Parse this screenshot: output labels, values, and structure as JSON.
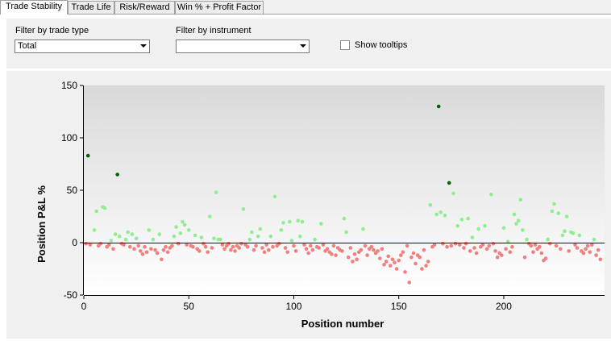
{
  "tabs": [
    {
      "label": "Trade Stability",
      "active": true
    },
    {
      "label": "Trade Life",
      "active": false
    },
    {
      "label": "Risk/Reward",
      "active": false
    },
    {
      "label": "Win % + Profit Factor",
      "active": false
    }
  ],
  "filters": {
    "trade_type_label": "Filter by trade type",
    "trade_type_value": "Total",
    "instrument_label": "Filter by instrument",
    "instrument_value": "",
    "tooltips_label": "Show tooltips",
    "tooltips_checked": false
  },
  "chart_data": {
    "type": "scatter",
    "xlabel": "Position number",
    "ylabel": "Position P&L %",
    "xlim": [
      0,
      248
    ],
    "ylim": [
      -50,
      150
    ],
    "xticks": [
      0,
      50,
      100,
      150,
      200
    ],
    "yticks": [
      -50,
      0,
      50,
      100,
      150
    ],
    "colors": {
      "win": "#90ee90",
      "loss": "#f08080",
      "big_win": "#006400",
      "zero_line": "#000080"
    },
    "points": [
      [
        1,
        -1
      ],
      [
        2,
        83
      ],
      [
        3,
        -2
      ],
      [
        5,
        12
      ],
      [
        6,
        30
      ],
      [
        7,
        -3
      ],
      [
        8,
        -1
      ],
      [
        9,
        34
      ],
      [
        10,
        33
      ],
      [
        11,
        -4
      ],
      [
        12,
        -2
      ],
      [
        13,
        2
      ],
      [
        14,
        -6
      ],
      [
        15,
        8
      ],
      [
        16,
        65
      ],
      [
        17,
        6
      ],
      [
        18,
        -1
      ],
      [
        19,
        -2
      ],
      [
        20,
        3
      ],
      [
        21,
        10
      ],
      [
        22,
        -4
      ],
      [
        23,
        8
      ],
      [
        24,
        -6
      ],
      [
        25,
        4
      ],
      [
        26,
        -3
      ],
      [
        27,
        -8
      ],
      [
        28,
        -11
      ],
      [
        29,
        -4
      ],
      [
        30,
        -9
      ],
      [
        31,
        12
      ],
      [
        32,
        -6
      ],
      [
        33,
        3
      ],
      [
        34,
        -7
      ],
      [
        35,
        -10
      ],
      [
        36,
        8
      ],
      [
        37,
        -16
      ],
      [
        38,
        -7
      ],
      [
        39,
        -4
      ],
      [
        40,
        -9
      ],
      [
        41,
        -5
      ],
      [
        42,
        -3
      ],
      [
        43,
        6
      ],
      [
        44,
        15
      ],
      [
        45,
        -1
      ],
      [
        46,
        9
      ],
      [
        47,
        20
      ],
      [
        48,
        17
      ],
      [
        49,
        -2
      ],
      [
        50,
        12
      ],
      [
        51,
        -3
      ],
      [
        52,
        -4
      ],
      [
        53,
        7
      ],
      [
        54,
        -6
      ],
      [
        55,
        -8
      ],
      [
        56,
        5
      ],
      [
        57,
        -1
      ],
      [
        58,
        -4
      ],
      [
        59,
        -9
      ],
      [
        60,
        25
      ],
      [
        61,
        -5
      ],
      [
        62,
        4
      ],
      [
        63,
        48
      ],
      [
        64,
        3
      ],
      [
        65,
        3
      ],
      [
        66,
        -2
      ],
      [
        67,
        -6
      ],
      [
        68,
        -3
      ],
      [
        69,
        -1
      ],
      [
        70,
        -7
      ],
      [
        71,
        -4
      ],
      [
        72,
        -8
      ],
      [
        73,
        -3
      ],
      [
        74,
        -5
      ],
      [
        75,
        -1
      ],
      [
        76,
        32
      ],
      [
        77,
        -2
      ],
      [
        78,
        -4
      ],
      [
        79,
        3
      ],
      [
        80,
        10
      ],
      [
        81,
        -7
      ],
      [
        82,
        -3
      ],
      [
        83,
        6
      ],
      [
        84,
        13
      ],
      [
        85,
        -5
      ],
      [
        86,
        -9
      ],
      [
        87,
        -2
      ],
      [
        88,
        -7
      ],
      [
        89,
        6
      ],
      [
        90,
        -4
      ],
      [
        91,
        44
      ],
      [
        92,
        -3
      ],
      [
        93,
        -1
      ],
      [
        94,
        12
      ],
      [
        95,
        19
      ],
      [
        96,
        -5
      ],
      [
        97,
        -9
      ],
      [
        98,
        20
      ],
      [
        99,
        2
      ],
      [
        100,
        -3
      ],
      [
        101,
        -8
      ],
      [
        102,
        21
      ],
      [
        103,
        6
      ],
      [
        104,
        20
      ],
      [
        105,
        -2
      ],
      [
        106,
        -6
      ],
      [
        107,
        -10
      ],
      [
        108,
        -3
      ],
      [
        109,
        -7
      ],
      [
        110,
        3
      ],
      [
        111,
        -4
      ],
      [
        112,
        -5
      ],
      [
        113,
        18
      ],
      [
        114,
        -2
      ],
      [
        115,
        -8
      ],
      [
        116,
        -6
      ],
      [
        117,
        -9
      ],
      [
        118,
        -11
      ],
      [
        119,
        -3
      ],
      [
        120,
        -12
      ],
      [
        121,
        -5
      ],
      [
        122,
        -7
      ],
      [
        123,
        -8
      ],
      [
        124,
        23
      ],
      [
        125,
        10
      ],
      [
        126,
        -14
      ],
      [
        127,
        -5
      ],
      [
        128,
        -18
      ],
      [
        129,
        -11
      ],
      [
        130,
        -16
      ],
      [
        131,
        -9
      ],
      [
        132,
        -7
      ],
      [
        133,
        13
      ],
      [
        134,
        -3
      ],
      [
        135,
        -12
      ],
      [
        136,
        -6
      ],
      [
        137,
        -4
      ],
      [
        138,
        -7
      ],
      [
        139,
        -10
      ],
      [
        140,
        -8
      ],
      [
        141,
        -15
      ],
      [
        142,
        -6
      ],
      [
        143,
        -21
      ],
      [
        144,
        -18
      ],
      [
        145,
        -13
      ],
      [
        146,
        -22
      ],
      [
        147,
        -16
      ],
      [
        148,
        -19
      ],
      [
        149,
        -25
      ],
      [
        150,
        -17
      ],
      [
        151,
        -12
      ],
      [
        152,
        -9
      ],
      [
        153,
        -28
      ],
      [
        154,
        -3
      ],
      [
        155,
        -38
      ],
      [
        156,
        -14
      ],
      [
        157,
        -10
      ],
      [
        158,
        -20
      ],
      [
        159,
        -12
      ],
      [
        160,
        -14
      ],
      [
        161,
        -25
      ],
      [
        162,
        -7
      ],
      [
        163,
        -22
      ],
      [
        164,
        -18
      ],
      [
        165,
        36
      ],
      [
        166,
        -4
      ],
      [
        167,
        -2
      ],
      [
        168,
        27
      ],
      [
        169,
        130
      ],
      [
        170,
        29
      ],
      [
        171,
        -1
      ],
      [
        172,
        26
      ],
      [
        173,
        -4
      ],
      [
        174,
        57
      ],
      [
        175,
        -3
      ],
      [
        176,
        47
      ],
      [
        177,
        -1
      ],
      [
        178,
        16
      ],
      [
        179,
        -2
      ],
      [
        180,
        22
      ],
      [
        181,
        -5
      ],
      [
        182,
        -1
      ],
      [
        183,
        23
      ],
      [
        184,
        -8
      ],
      [
        185,
        5
      ],
      [
        186,
        -5
      ],
      [
        187,
        -10
      ],
      [
        188,
        13
      ],
      [
        189,
        -4
      ],
      [
        190,
        -2
      ],
      [
        191,
        16
      ],
      [
        192,
        -6
      ],
      [
        193,
        -3
      ],
      [
        194,
        46
      ],
      [
        195,
        -1
      ],
      [
        196,
        -8
      ],
      [
        197,
        -14
      ],
      [
        198,
        -10
      ],
      [
        199,
        -12
      ],
      [
        200,
        14
      ],
      [
        201,
        -6
      ],
      [
        202,
        1
      ],
      [
        203,
        -9
      ],
      [
        204,
        -4
      ],
      [
        205,
        27
      ],
      [
        206,
        18
      ],
      [
        207,
        21
      ],
      [
        208,
        41
      ],
      [
        209,
        12
      ],
      [
        210,
        -14
      ],
      [
        211,
        3
      ],
      [
        212,
        -1
      ],
      [
        213,
        -3
      ],
      [
        214,
        -9
      ],
      [
        215,
        -2
      ],
      [
        216,
        -6
      ],
      [
        217,
        -4
      ],
      [
        218,
        -10
      ],
      [
        219,
        -17
      ],
      [
        220,
        -15
      ],
      [
        221,
        3
      ],
      [
        222,
        -1
      ],
      [
        223,
        30
      ],
      [
        224,
        37
      ],
      [
        225,
        -3
      ],
      [
        226,
        28
      ],
      [
        227,
        -6
      ],
      [
        228,
        7
      ],
      [
        229,
        11
      ],
      [
        230,
        25
      ],
      [
        231,
        -8
      ],
      [
        232,
        10
      ],
      [
        233,
        9
      ],
      [
        234,
        -2
      ],
      [
        235,
        -5
      ],
      [
        236,
        7
      ],
      [
        237,
        -8
      ],
      [
        238,
        -10
      ],
      [
        239,
        -6
      ],
      [
        240,
        -3
      ],
      [
        241,
        -9
      ],
      [
        242,
        -2
      ],
      [
        243,
        3
      ],
      [
        244,
        -12
      ],
      [
        245,
        -7
      ],
      [
        246,
        -16
      ]
    ]
  }
}
